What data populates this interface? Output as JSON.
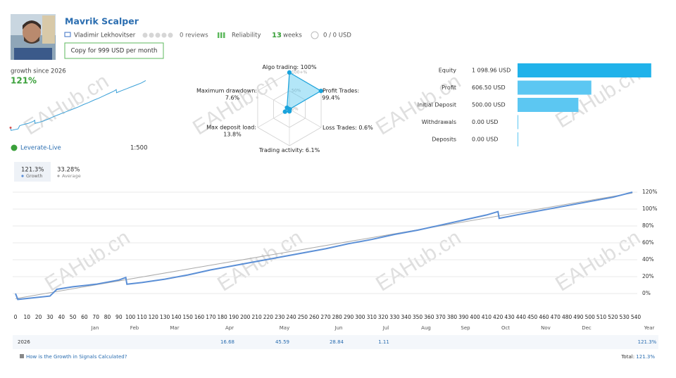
{
  "watermark": "EAHub.cn",
  "header": {
    "name": "Mavrik Scalper",
    "author": "Vladimir Lekhovitser",
    "reviews": "0 reviews",
    "reliability": "Reliability",
    "weeks": "13",
    "weeks_unit": "weeks",
    "subscribers": "0 / 0 USD",
    "copy_button": "Copy for 999 USD per month"
  },
  "summary": {
    "growth_label": "growth since 2026",
    "growth": "121%",
    "broker": "Leverate-Live",
    "leverage": "1:500"
  },
  "tabs": [
    {
      "value": "121.3%",
      "label": "Growth"
    },
    {
      "value": "33.28%",
      "label": "Average"
    }
  ],
  "chart_data": [
    {
      "type": "radar",
      "categories": [
        "Algo trading:",
        "Profit Trades:",
        "Loss Trades:",
        "Trading activity:",
        "Max deposit load:",
        "Maximum drawdown:"
      ],
      "values": [
        100,
        99.4,
        0.6,
        6.1,
        13.8,
        7.6
      ],
      "value_labels": [
        "100%",
        "99.4%",
        "0.6%",
        "6.1%",
        "13.8%",
        "7.6%"
      ],
      "rlim": [
        0,
        100
      ],
      "rticks": [
        {
          "value": 0,
          "label": "0%"
        },
        {
          "value": 50,
          "label": "50%"
        },
        {
          "value": 100,
          "label": "100+%"
        }
      ],
      "color": "#1aa3dc"
    },
    {
      "type": "hbar",
      "categories": [
        "Equity",
        "Profit",
        "Initial Deposit",
        "Withdrawals",
        "Deposits"
      ],
      "values": [
        1098.96,
        606.5,
        500,
        0,
        0
      ],
      "value_labels": [
        "1 098.96 USD",
        "606.50 USD",
        "500.00 USD",
        "0.00 USD",
        "0.00 USD"
      ],
      "colors": [
        "#20b2ea",
        "#5cc7f2",
        "#5cc7f2",
        "#5cc7f2",
        "#5cc7f2"
      ],
      "xlim": [
        0,
        1100
      ]
    },
    {
      "type": "line",
      "x": [
        0,
        2,
        30,
        36,
        50,
        70,
        90,
        96,
        97,
        110,
        130,
        150,
        170,
        190,
        210,
        230,
        250,
        270,
        290,
        310,
        330,
        350,
        370,
        390,
        410,
        420,
        421,
        440,
        460,
        480,
        500,
        520,
        537
      ],
      "series": [
        {
          "color": "#5b8fd6",
          "values": [
            0,
            -7,
            -3,
            5,
            8,
            11,
            16,
            19,
            11,
            13,
            17,
            22,
            28,
            33,
            38,
            43,
            48,
            53,
            59,
            64,
            70,
            75,
            81,
            87,
            93,
            97,
            89,
            94,
            99,
            104,
            109,
            114,
            120
          ]
        },
        {
          "color": "#aaaaaa",
          "x": [
            0,
            537
          ],
          "values": [
            -6,
            119
          ]
        }
      ],
      "xlim": [
        0,
        540
      ],
      "xticks": [
        0,
        10,
        20,
        30,
        40,
        50,
        60,
        70,
        80,
        90,
        100,
        110,
        120,
        130,
        140,
        150,
        160,
        170,
        180,
        190,
        200,
        210,
        220,
        230,
        240,
        250,
        260,
        270,
        280,
        290,
        300,
        310,
        320,
        330,
        340,
        350,
        360,
        370,
        380,
        390,
        400,
        410,
        420,
        430,
        440,
        450,
        460,
        470,
        480,
        490,
        500,
        510,
        520,
        530,
        540
      ],
      "ylim": [
        -10,
        128
      ],
      "yticks": [
        {
          "value": 0,
          "label": "0%"
        },
        {
          "value": 20,
          "label": "20%"
        },
        {
          "value": 40,
          "label": "40%"
        },
        {
          "value": 60,
          "label": "60%"
        },
        {
          "value": 80,
          "label": "80%"
        },
        {
          "value": 100,
          "label": "100%"
        },
        {
          "value": 120,
          "label": "120%"
        }
      ],
      "grid": true
    }
  ],
  "table": {
    "columns": [
      "Jan",
      "Feb",
      "Mar",
      "Apr",
      "May",
      "Jun",
      "Jul",
      "Aug",
      "Sep",
      "Oct",
      "Nov",
      "Dec",
      "Year"
    ],
    "row_label": "2026",
    "values": [
      null,
      null,
      null,
      16.68,
      45.59,
      28.84,
      1.11,
      null,
      null,
      null,
      null,
      null,
      "121.3%"
    ]
  },
  "footer": {
    "link": "How is the Growth in Signals Calculated?",
    "total_label": "Total:",
    "total": "121.3%"
  }
}
